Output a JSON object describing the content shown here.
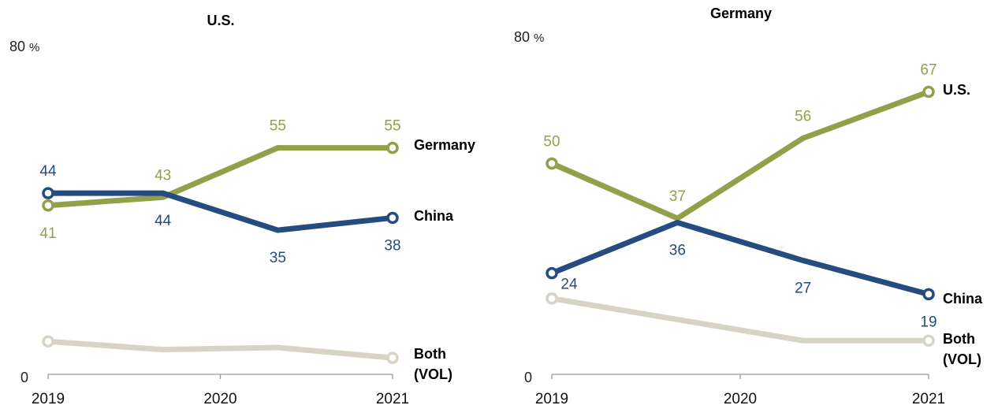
{
  "colors": {
    "germany": "#949f4a",
    "us": "#949f4a",
    "china": "#264b7e",
    "both": "#d8d4c5",
    "axis": "#999999"
  },
  "chart_data": [
    {
      "type": "line",
      "title": "U.S.",
      "ylim": [
        0,
        80
      ],
      "ytick_top": "80",
      "ytick_unit": "%",
      "ytick_bottom": "0",
      "x_ticks": [
        "2019",
        "2020",
        "2021"
      ],
      "x": [
        0,
        1,
        2,
        3
      ],
      "series": [
        {
          "name": "Germany",
          "color_key": "germany",
          "values": [
            41,
            43,
            55,
            55
          ],
          "labels": [
            "41",
            "43",
            "55",
            "55"
          ],
          "label_pos": [
            "below",
            "above",
            "above",
            "above"
          ],
          "endpoints": [
            0,
            3
          ]
        },
        {
          "name": "China",
          "color_key": "china",
          "values": [
            44,
            44,
            35,
            38
          ],
          "labels": [
            "44",
            "44",
            "35",
            "38"
          ],
          "label_pos": [
            "above",
            "below",
            "below",
            "below"
          ],
          "endpoints": [
            0,
            3
          ]
        },
        {
          "name": "Both\n(VOL)",
          "color_key": "both",
          "values": [
            8,
            6,
            6.5,
            4
          ],
          "labels": [],
          "endpoints": [
            0,
            3
          ]
        }
      ]
    },
    {
      "type": "line",
      "title": "Germany",
      "ylim": [
        0,
        80
      ],
      "ytick_top": "80",
      "ytick_unit": "%",
      "ytick_bottom": "0",
      "x_ticks": [
        "2019",
        "2020",
        "2021"
      ],
      "x": [
        0,
        1,
        2,
        3
      ],
      "series": [
        {
          "name": "U.S.",
          "color_key": "us",
          "values": [
            50,
            37,
            56,
            67
          ],
          "labels": [
            "50",
            "37",
            "56",
            "67"
          ],
          "label_pos": [
            "above",
            "above",
            "above",
            "above"
          ],
          "endpoints": [
            0,
            3
          ]
        },
        {
          "name": "China",
          "color_key": "china",
          "values": [
            24,
            36,
            27,
            19
          ],
          "labels": [
            "24",
            "36",
            "27",
            "19"
          ],
          "label_pos": [
            "right-below",
            "below",
            "below",
            "below"
          ],
          "endpoints": [
            0,
            3
          ]
        },
        {
          "name": "Both\n(VOL)",
          "color_key": "both",
          "values": [
            18,
            13,
            8,
            8
          ],
          "labels": [],
          "endpoints": [
            0,
            3
          ]
        }
      ]
    }
  ]
}
